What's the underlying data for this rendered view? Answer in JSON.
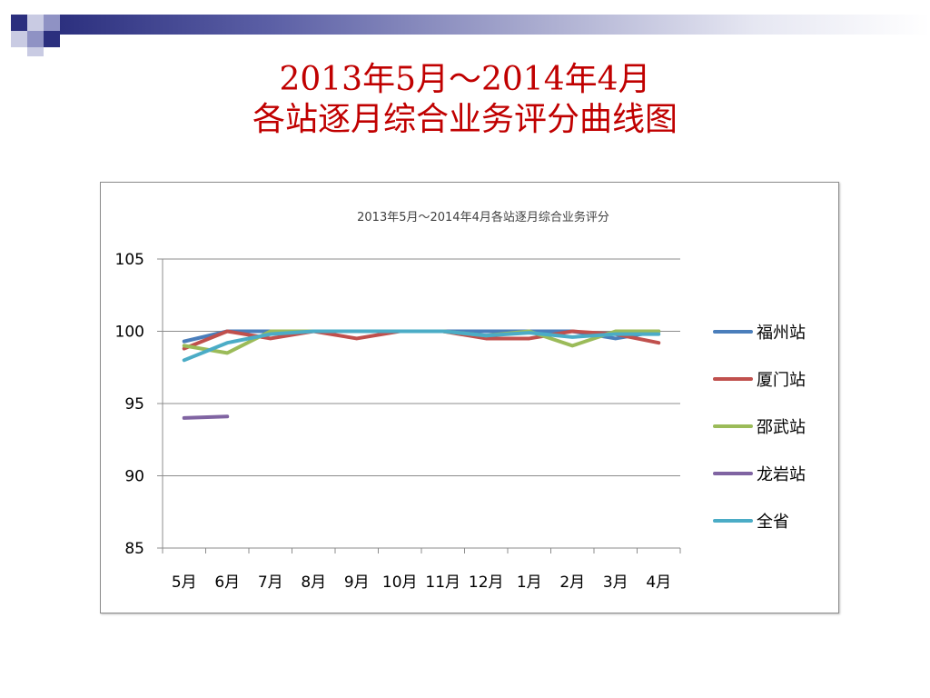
{
  "slide": {
    "title_line1": "2013年5月～2014年4月",
    "title_line2": "各站逐月综合业务评分曲线图"
  },
  "colors": {
    "band_dark": "#2b2f7e",
    "title_red": "#c00000"
  },
  "chart_data": {
    "type": "line",
    "title": "2013年5月～2014年4月各站逐月综合业务评分",
    "categories": [
      "5月",
      "6月",
      "7月",
      "8月",
      "9月",
      "10月",
      "11月",
      "12月",
      "1月",
      "2月",
      "3月",
      "4月"
    ],
    "ylim": [
      85,
      105
    ],
    "yticks": [
      85,
      90,
      95,
      100,
      105
    ],
    "grid": true,
    "legend_position": "right",
    "series": [
      {
        "name": "福州站",
        "color": "#4a7ebb",
        "values": [
          99.3,
          100,
          100,
          100,
          100,
          100,
          100,
          100,
          100,
          100,
          99.5,
          100
        ]
      },
      {
        "name": "厦门站",
        "color": "#c0504d",
        "values": [
          98.8,
          100,
          99.5,
          100,
          99.5,
          100,
          100,
          99.5,
          99.5,
          100,
          99.8,
          99.2
        ]
      },
      {
        "name": "邵武站",
        "color": "#9bbb59",
        "values": [
          99.0,
          98.5,
          100,
          100,
          100,
          100,
          100,
          99.7,
          100,
          99.0,
          100,
          100
        ]
      },
      {
        "name": "龙岩站",
        "color": "#8064a2",
        "values": [
          94.0,
          94.1,
          null,
          null,
          null,
          null,
          null,
          null,
          null,
          null,
          null,
          null
        ]
      },
      {
        "name": "全省",
        "color": "#4bacc6",
        "values": [
          98.0,
          99.2,
          99.8,
          100,
          100,
          100,
          100,
          99.7,
          99.9,
          99.6,
          99.8,
          99.8
        ]
      }
    ]
  }
}
